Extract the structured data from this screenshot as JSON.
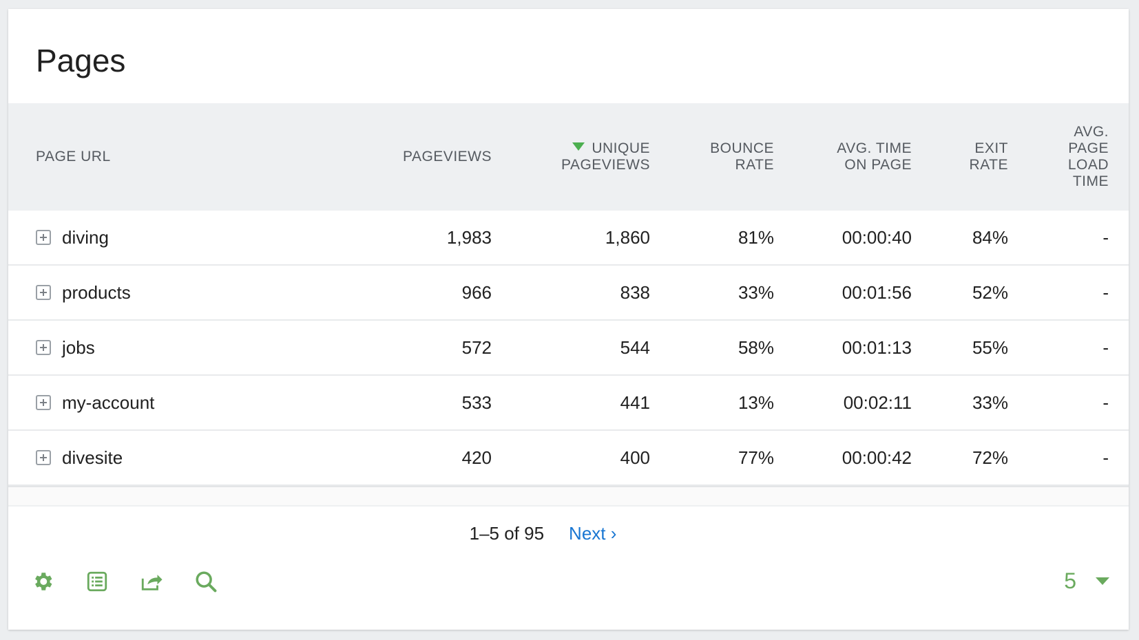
{
  "title": "Pages",
  "columns": {
    "page_url": "PAGE URL",
    "pageviews": "PAGEVIEWS",
    "unique_pageviews_1": "UNIQUE",
    "unique_pageviews_2": "PAGEVIEWS",
    "bounce_rate_1": "BOUNCE",
    "bounce_rate_2": "RATE",
    "avg_time_1": "AVG. TIME",
    "avg_time_2": "ON PAGE",
    "exit_rate_1": "EXIT",
    "exit_rate_2": "RATE",
    "load_time_1": "AVG.",
    "load_time_2": "PAGE",
    "load_time_3": "LOAD",
    "load_time_4": "TIME"
  },
  "rows": [
    {
      "url": "diving",
      "pageviews": "1,983",
      "unique": "1,860",
      "bounce": "81%",
      "time": "00:00:40",
      "exit": "84%",
      "load": "-"
    },
    {
      "url": "products",
      "pageviews": "966",
      "unique": "838",
      "bounce": "33%",
      "time": "00:01:56",
      "exit": "52%",
      "load": "-"
    },
    {
      "url": "jobs",
      "pageviews": "572",
      "unique": "544",
      "bounce": "58%",
      "time": "00:01:13",
      "exit": "55%",
      "load": "-"
    },
    {
      "url": "my-account",
      "pageviews": "533",
      "unique": "441",
      "bounce": "13%",
      "time": "00:02:11",
      "exit": "33%",
      "load": "-"
    },
    {
      "url": "divesite",
      "pageviews": "420",
      "unique": "400",
      "bounce": "77%",
      "time": "00:00:42",
      "exit": "72%",
      "load": "-"
    }
  ],
  "pagination": {
    "range": "1–5 of 95",
    "next": "Next ›"
  },
  "footer": {
    "icons": [
      "gear-icon",
      "table-view-icon",
      "export-icon",
      "search-icon"
    ],
    "limit": "5"
  },
  "colors": {
    "accent_green": "#6aaa5e",
    "link_blue": "#1976d2",
    "sort_arrow": "#4caf50"
  }
}
